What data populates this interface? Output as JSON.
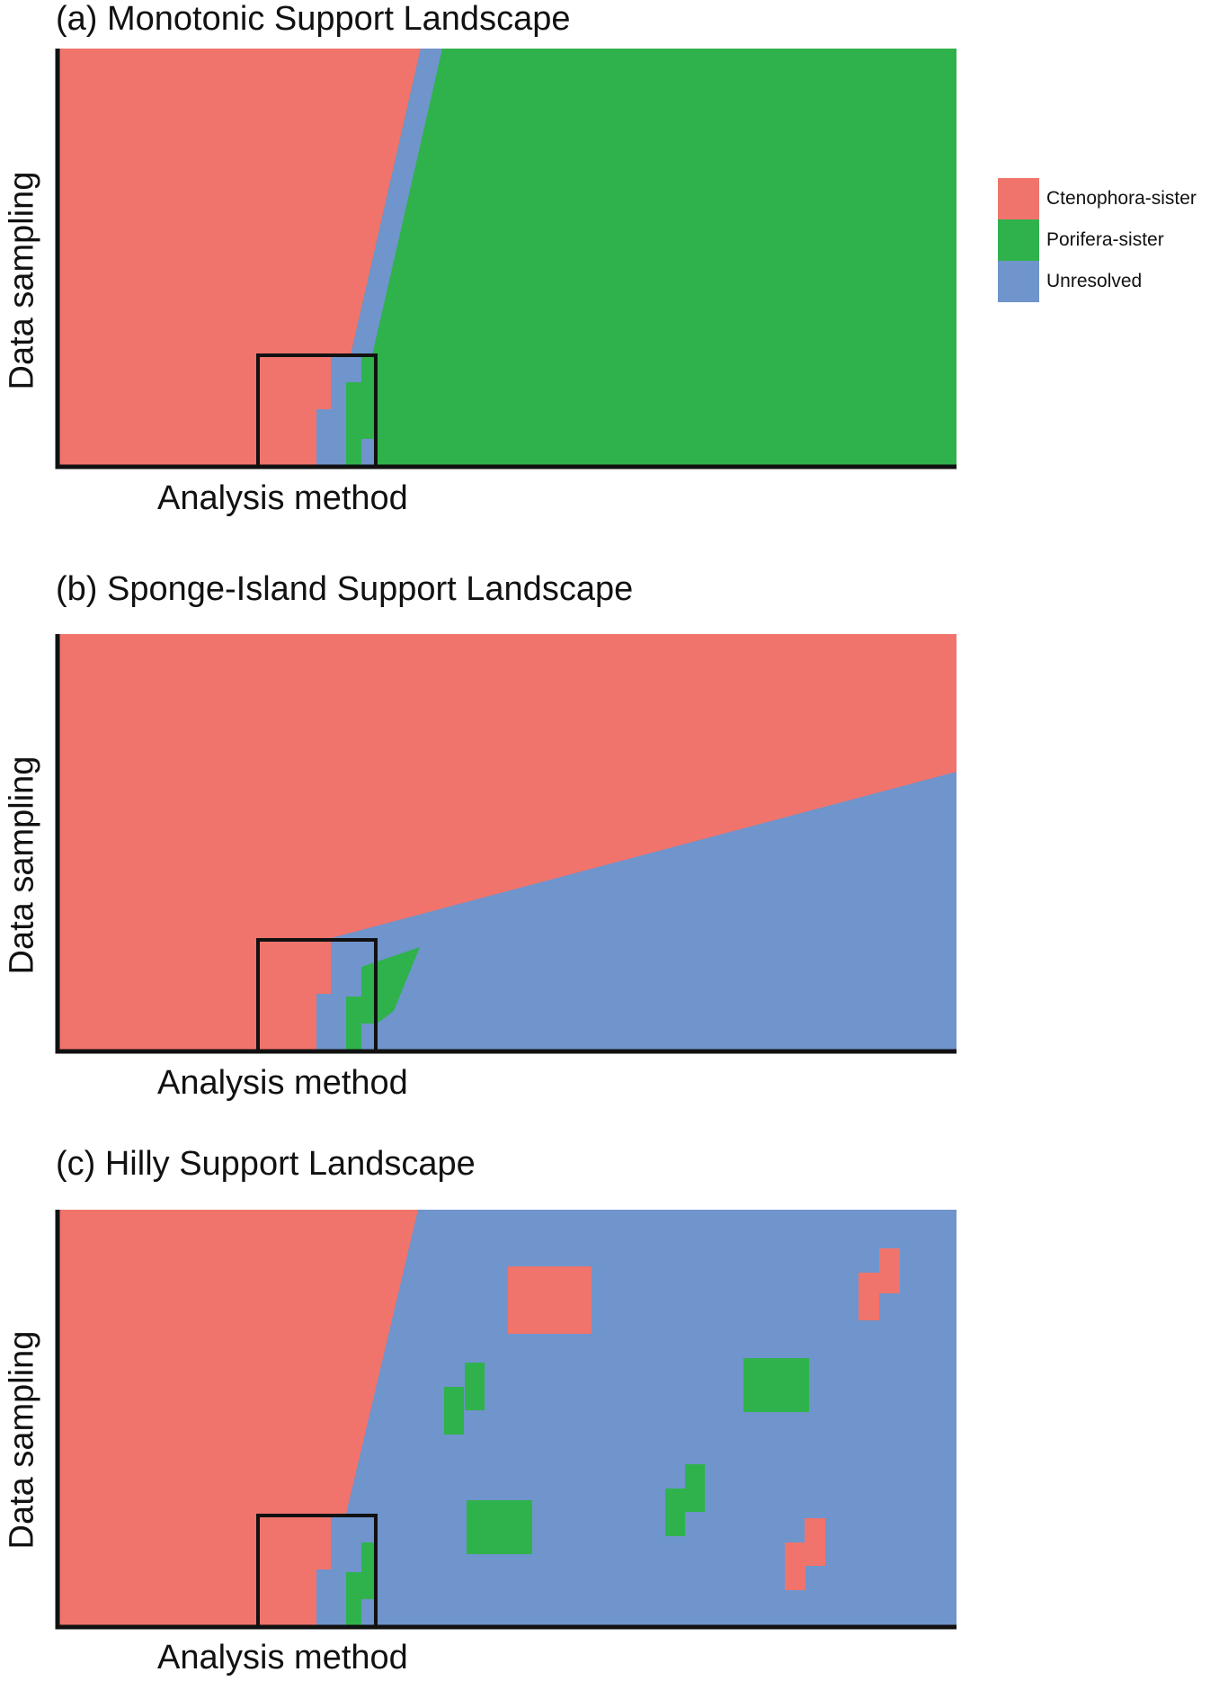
{
  "colors": {
    "ctenophora": "#f0746c",
    "porifera": "#2fb24c",
    "unresolved": "#7094cc",
    "axis": "#111111"
  },
  "legend": [
    {
      "label": "Ctenophora-sister",
      "color": "#f0746c"
    },
    {
      "label": "Porifera-sister",
      "color": "#2fb24c"
    },
    {
      "label": "Unresolved",
      "color": "#7094cc"
    }
  ],
  "panels": [
    {
      "title": "(a) Monotonic Support Landscape",
      "ylabel": "Data sampling",
      "xlabel": "Analysis method"
    },
    {
      "title": "(b) Sponge-Island Support Landscape",
      "ylabel": "Data sampling",
      "xlabel": "Analysis method"
    },
    {
      "title": "(c) Hilly Support Landscape",
      "ylabel": "Data sampling",
      "xlabel": "Analysis method"
    }
  ]
}
